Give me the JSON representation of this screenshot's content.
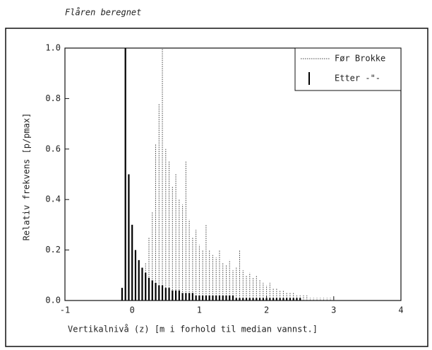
{
  "chart_data": {
    "type": "spike",
    "title": "Flåren beregnet",
    "xlabel": "Vertikalnivå (z)    [m i forhold til median vannst.]",
    "ylabel": "Relativ frekvens  [p/pmax]",
    "xlim": [
      -1,
      4
    ],
    "ylim": [
      0,
      1.0
    ],
    "xticks": [
      -1,
      0,
      1,
      2,
      3,
      4
    ],
    "yticks": [
      {
        "value": 0,
        "label": "0.0"
      },
      0.2,
      0.4,
      0.6,
      0.8,
      {
        "value": 1.0,
        "label": "1.0"
      }
    ],
    "legend": "upper right",
    "x": [
      -0.15,
      -0.1,
      -0.05,
      0,
      0.05,
      0.1,
      0.15,
      0.2,
      0.25,
      0.3,
      0.35,
      0.4,
      0.45,
      0.5,
      0.55,
      0.6,
      0.65,
      0.7,
      0.75,
      0.8,
      0.85,
      0.9,
      0.95,
      1.0,
      1.05,
      1.1,
      1.15,
      1.2,
      1.25,
      1.3,
      1.35,
      1.4,
      1.45,
      1.5,
      1.55,
      1.6,
      1.65,
      1.7,
      1.75,
      1.8,
      1.85,
      1.9,
      1.95,
      2.0,
      2.05,
      2.1,
      2.15,
      2.2,
      2.25,
      2.3,
      2.35,
      2.4,
      2.45,
      2.5,
      2.55,
      2.6,
      2.65,
      2.7,
      2.75,
      2.8,
      2.85,
      2.9,
      2.95,
      3.0
    ],
    "series": [
      {
        "name": "Før Brokke",
        "color": "#444444",
        "style": "dotted",
        "values": [
          null,
          null,
          null,
          null,
          0.02,
          0.05,
          0.1,
          0.15,
          0.25,
          0.35,
          0.62,
          0.78,
          1.0,
          0.6,
          0.55,
          0.45,
          0.5,
          0.4,
          0.38,
          0.55,
          0.32,
          0.25,
          0.28,
          0.22,
          0.2,
          0.3,
          0.2,
          0.18,
          0.17,
          0.2,
          0.15,
          0.14,
          0.16,
          0.12,
          0.13,
          0.2,
          0.12,
          0.1,
          0.11,
          0.09,
          0.1,
          0.08,
          0.07,
          0.06,
          0.07,
          0.05,
          0.05,
          0.04,
          0.04,
          0.03,
          0.03,
          0.03,
          0.02,
          0.02,
          0.02,
          0.02,
          0.01,
          0.01,
          0.01,
          0.01,
          0.01,
          0.01,
          0.01,
          0.01
        ]
      },
      {
        "name": "Etter -\"-",
        "color": "#000000",
        "style": "solid",
        "values": [
          0.05,
          1.0,
          0.5,
          0.3,
          0.2,
          0.16,
          0.13,
          0.11,
          0.09,
          0.08,
          0.07,
          0.06,
          0.06,
          0.05,
          0.05,
          0.04,
          0.04,
          0.04,
          0.03,
          0.03,
          0.03,
          0.03,
          0.02,
          0.02,
          0.02,
          0.02,
          0.02,
          0.02,
          0.02,
          0.02,
          0.02,
          0.02,
          0.02,
          0.02,
          0.01,
          0.01,
          0.01,
          0.01,
          0.01,
          0.01,
          0.01,
          0.01,
          0.01,
          0.01,
          0.01,
          0.01,
          0.01,
          0.01,
          0.01,
          0.01,
          0.01,
          0.01,
          0.01,
          0.01,
          null,
          null,
          null,
          null,
          null,
          null,
          null,
          null,
          null,
          null
        ]
      }
    ]
  }
}
